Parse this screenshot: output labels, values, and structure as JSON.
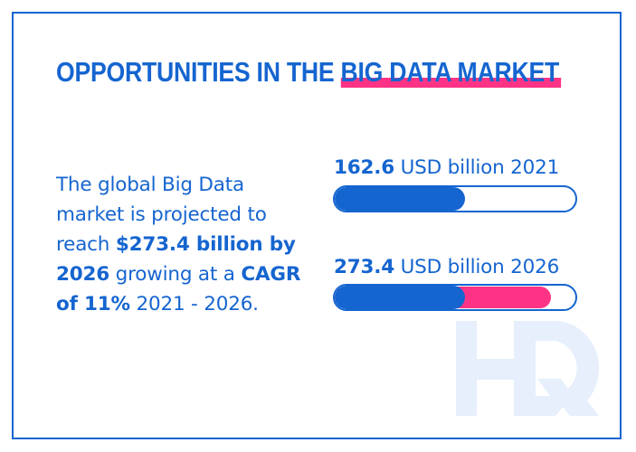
{
  "title": {
    "prefix": "OPPORTUNITIES IN THE ",
    "highlight": "BIG DATA MARKET"
  },
  "summary": {
    "line1": "The global Big Data",
    "line2": "market is projected to",
    "line3_plain": "reach ",
    "line3_bold": "$273.4 billion by",
    "line4_bold": "2026",
    "line4_plain": " growing at a ",
    "line4_bold2": "CAGR",
    "line5_bold": "of 11%",
    "line5_plain": " 2021 - 2026."
  },
  "stats": [
    {
      "value": "162.6",
      "label": " USD billion 2021",
      "blue_fill_pct": 54,
      "pink_fill_pct": 0
    },
    {
      "value": "273.4",
      "label": " USD billion 2026",
      "blue_fill_pct": 54,
      "pink_fill_pct": 90
    }
  ],
  "watermark": {
    "text": "HQ",
    "icon": "hq-logo-icon"
  },
  "colors": {
    "primary_blue": "#1565d0",
    "accent_pink": "#ff3385",
    "watermark": "#e6effb",
    "background": "#ffffff"
  }
}
